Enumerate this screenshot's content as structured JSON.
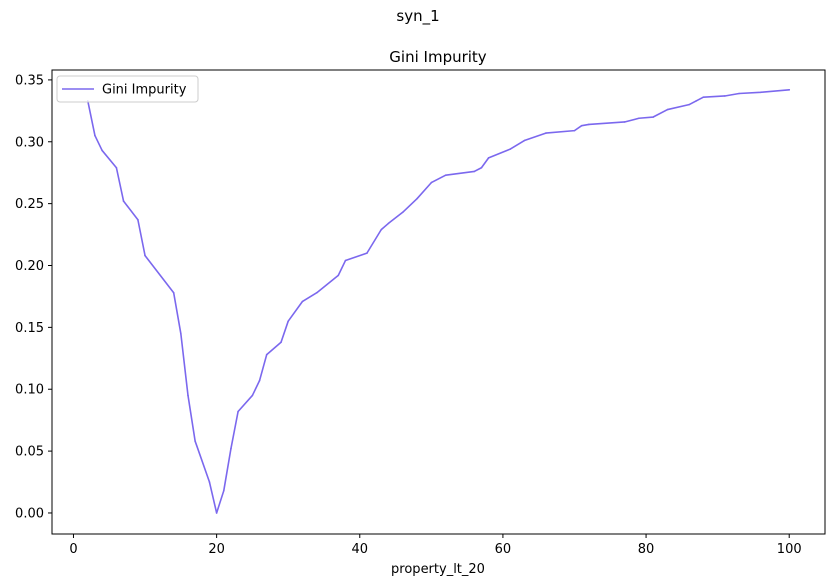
{
  "figure": {
    "suptitle": "syn_1"
  },
  "chart_data": {
    "type": "line",
    "title": "Gini Impurity",
    "xlabel": "property_lt_20",
    "ylabel": "",
    "xlim": [
      -3,
      105
    ],
    "ylim": [
      -0.017,
      0.358
    ],
    "xticks": [
      0,
      20,
      40,
      60,
      80,
      100
    ],
    "yticks": [
      0.0,
      0.05,
      0.1,
      0.15,
      0.2,
      0.25,
      0.3,
      0.35
    ],
    "ytick_labels": [
      "0.00",
      "0.05",
      "0.10",
      "0.15",
      "0.20",
      "0.25",
      "0.30",
      "0.35"
    ],
    "grid": false,
    "legend": {
      "position": "top-left",
      "entries": [
        "Gini Impurity"
      ]
    },
    "series": [
      {
        "name": "Gini Impurity",
        "color": "#7b68ee",
        "x": [
          2,
          3,
          4,
          6,
          7,
          9,
          10,
          14,
          15,
          16,
          17,
          19,
          20,
          21,
          22,
          23,
          25,
          26,
          27,
          29,
          30,
          32,
          34,
          37,
          38,
          41,
          43,
          44,
          46,
          48,
          50,
          52,
          56,
          57,
          58,
          61,
          63,
          66,
          70,
          71,
          72,
          77,
          79,
          81,
          83,
          86,
          87,
          88,
          91,
          93,
          96,
          100
        ],
        "y": [
          0.333,
          0.305,
          0.293,
          0.279,
          0.252,
          0.237,
          0.208,
          0.178,
          0.145,
          0.095,
          0.058,
          0.025,
          0.0,
          0.018,
          0.052,
          0.082,
          0.095,
          0.107,
          0.128,
          0.138,
          0.155,
          0.171,
          0.178,
          0.192,
          0.204,
          0.21,
          0.229,
          0.234,
          0.243,
          0.254,
          0.267,
          0.273,
          0.276,
          0.279,
          0.287,
          0.294,
          0.301,
          0.307,
          0.309,
          0.313,
          0.314,
          0.316,
          0.319,
          0.32,
          0.326,
          0.33,
          0.333,
          0.336,
          0.337,
          0.339,
          0.34,
          0.342
        ]
      }
    ]
  }
}
